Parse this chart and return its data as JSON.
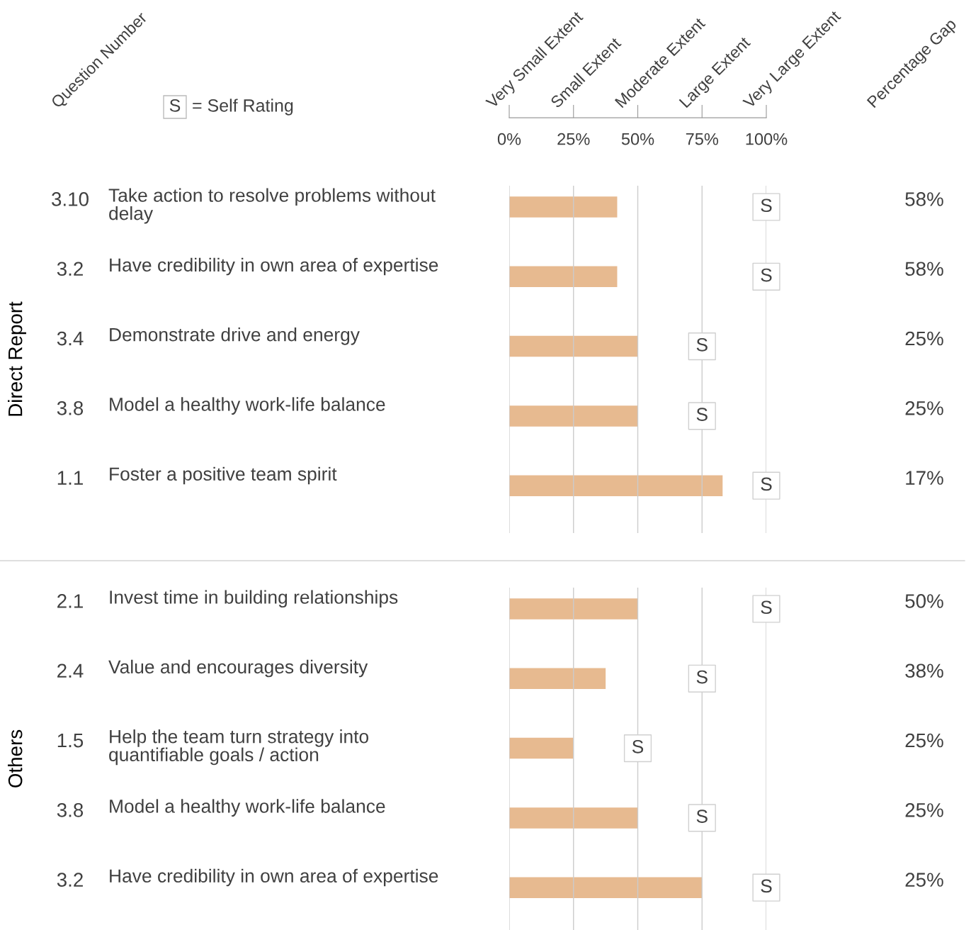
{
  "chart_data": [
    {
      "type": "bar",
      "orientation": "horizontal",
      "ylabel": "Direct Report",
      "categories": [
        "Take action to resolve problems without delay",
        "Have credibility in own area of expertise",
        "Demonstrate drive and energy",
        "Model a healthy work-life balance",
        "Foster a positive team spirit"
      ],
      "series": [
        {
          "color": "#e6b68a",
          "values": [
            42,
            42,
            50,
            50,
            83
          ]
        },
        {
          "type": "scatter",
          "name": "= Self Rating",
          "color": "#ffffff",
          "marker": "square",
          "values": [
            100,
            100,
            75,
            75,
            100
          ],
          "value_labels": [
            "S",
            "S",
            "S",
            "S",
            "S"
          ]
        }
      ],
      "xlim": [
        0,
        100
      ],
      "xticks": [
        {
          "value": 0,
          "label": "0%"
        },
        {
          "value": 25,
          "label": "25%"
        },
        {
          "value": 50,
          "label": "50%"
        },
        {
          "value": 75,
          "label": "75%"
        },
        {
          "value": 100,
          "label": "100%"
        }
      ],
      "annotations": [
        "Question Number",
        "Very Small Extent",
        "Small Extent",
        "Moderate Extent",
        "Large Extent",
        "Very Large Extent",
        "Percentage Gap",
        "3.10",
        "3.2",
        "3.4",
        "3.8",
        "1.1",
        "58%",
        "58%",
        "25%",
        "25%",
        "17%"
      ],
      "grid": "x",
      "legend": "top left"
    },
    {
      "type": "bar",
      "orientation": "horizontal",
      "ylabel": "Others",
      "categories": [
        "Invest time in building relationships",
        "Value and encourages diversity",
        "Help the team turn strategy into quantifiable goals / action",
        "Model a healthy work-life balance",
        "Have credibility in own area of expertise"
      ],
      "series": [
        {
          "color": "#e6b68a",
          "values": [
            50,
            37.5,
            25,
            50,
            75
          ]
        },
        {
          "type": "scatter",
          "color": "#ffffff",
          "marker": "square",
          "values": [
            100,
            75,
            50,
            75,
            100
          ],
          "value_labels": [
            "S",
            "S",
            "S",
            "S",
            "S"
          ]
        }
      ],
      "xlim": [
        0,
        100
      ],
      "annotations": [
        "2.1",
        "2.4",
        "1.5",
        "3.8",
        "3.2",
        "50%",
        "38%",
        "25%",
        "25%",
        "25%"
      ],
      "grid": "x",
      "tick_labels": "y"
    }
  ]
}
